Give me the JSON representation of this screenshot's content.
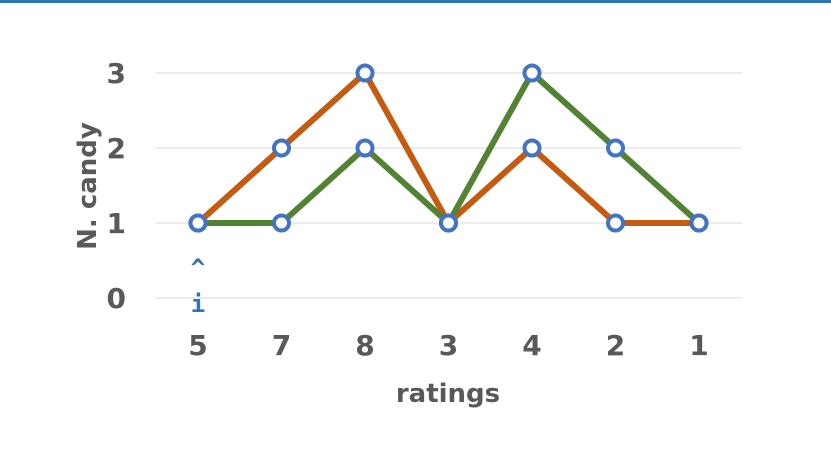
{
  "chart_data": {
    "type": "line",
    "categories": [
      "5",
      "7",
      "8",
      "3",
      "4",
      "2",
      "1"
    ],
    "series": [
      {
        "values": [
          1,
          2,
          3,
          1,
          2,
          1,
          1
        ],
        "color": "#c55a11"
      },
      {
        "values": [
          1,
          1,
          2,
          1,
          3,
          2,
          1
        ],
        "color": "#548235"
      }
    ],
    "marker_color": "#4472c4",
    "xlabel": "ratings",
    "ylabel": "N. candy",
    "ylim": [
      0,
      3
    ],
    "yticks": [
      "0",
      "1",
      "2",
      "3"
    ],
    "grid": true,
    "legend": "none"
  },
  "cursor": {
    "caret": "^",
    "letter": "i"
  }
}
